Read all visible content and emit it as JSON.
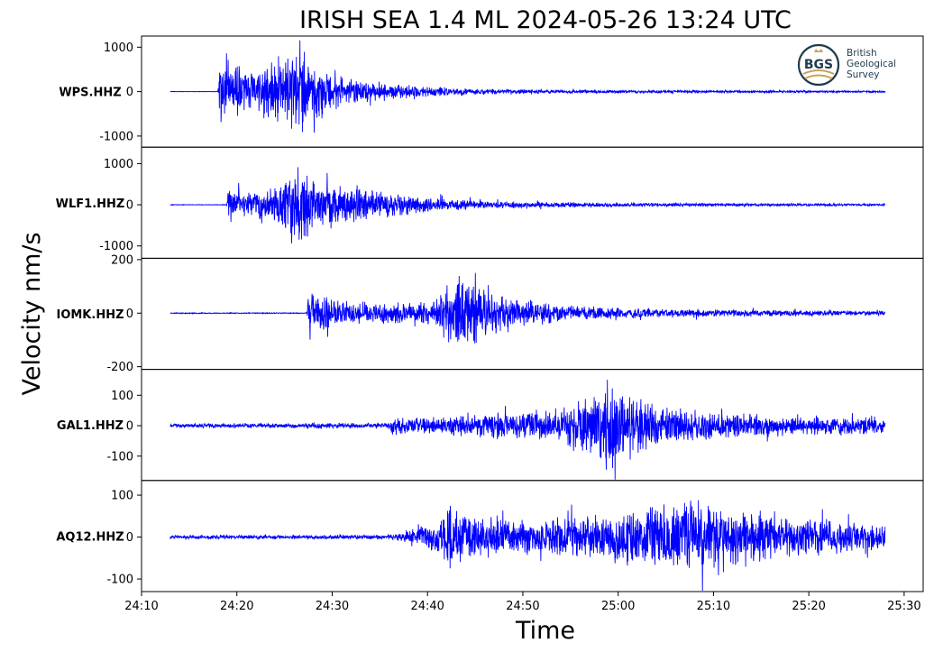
{
  "chart_data": {
    "type": "line",
    "title": "IRISH SEA 1.4 ML   2024-05-26 13:24 UTC",
    "xlabel": "Time",
    "ylabel": "Velocity nm/s",
    "x_ticks": [
      "24:10",
      "24:20",
      "24:30",
      "24:40",
      "24:50",
      "25:00",
      "25:10",
      "25:20",
      "25:30"
    ],
    "x_range_min": [
      24.1667,
      25.5333
    ],
    "trace_range_min": [
      24.2167,
      25.4667
    ],
    "line_color": "#0000ff",
    "logo": {
      "initials": "BGS",
      "lines": [
        "British",
        "Geological",
        "Survey"
      ]
    },
    "panels": [
      {
        "station": "WPS.HHZ",
        "ylim": [
          -1250,
          1250
        ],
        "y_ticks": [
          {
            "v": 1000,
            "label": "1000"
          },
          {
            "v": 0,
            "label": "0"
          },
          {
            "v": -1000,
            "label": "-1000"
          }
        ],
        "noise": 6,
        "envelope": [
          [
            24.2167,
            6
          ],
          [
            24.3,
            6
          ],
          [
            24.305,
            900
          ],
          [
            24.33,
            650
          ],
          [
            24.36,
            500
          ],
          [
            24.4,
            750
          ],
          [
            24.43,
            950
          ],
          [
            24.45,
            950
          ],
          [
            24.5,
            500
          ],
          [
            24.55,
            280
          ],
          [
            24.65,
            140
          ],
          [
            24.75,
            70
          ],
          [
            24.9,
            45
          ],
          [
            25.1,
            35
          ],
          [
            25.4667,
            25
          ]
        ]
      },
      {
        "station": "WLF1.HHZ",
        "ylim": [
          -1300,
          1400
        ],
        "y_ticks": [
          {
            "v": 1000,
            "label": "1000"
          },
          {
            "v": 0,
            "label": "0"
          },
          {
            "v": -1000,
            "label": "-1000"
          }
        ],
        "noise": 8,
        "envelope": [
          [
            24.2167,
            8
          ],
          [
            24.315,
            8
          ],
          [
            24.318,
            450
          ],
          [
            24.35,
            350
          ],
          [
            24.4,
            450
          ],
          [
            24.43,
            900
          ],
          [
            24.45,
            1000
          ],
          [
            24.48,
            650
          ],
          [
            24.55,
            450
          ],
          [
            24.65,
            220
          ],
          [
            24.75,
            120
          ],
          [
            24.9,
            70
          ],
          [
            25.1,
            45
          ],
          [
            25.4667,
            30
          ]
        ]
      },
      {
        "station": "IOMK.HHZ",
        "ylim": [
          -210,
          205
        ],
        "y_ticks": [
          {
            "v": 200,
            "label": "200"
          },
          {
            "v": 0,
            "label": "0"
          },
          {
            "v": -200,
            "label": "-200"
          }
        ],
        "noise": 2,
        "envelope": [
          [
            24.2167,
            2
          ],
          [
            24.455,
            2
          ],
          [
            24.458,
            120
          ],
          [
            24.5,
            55
          ],
          [
            24.6,
            40
          ],
          [
            24.68,
            50
          ],
          [
            24.7,
            110
          ],
          [
            24.72,
            160
          ],
          [
            24.75,
            140
          ],
          [
            24.8,
            70
          ],
          [
            24.9,
            35
          ],
          [
            25.0,
            22
          ],
          [
            25.2,
            15
          ],
          [
            25.4667,
            10
          ]
        ]
      },
      {
        "station": "GAL1.HHZ",
        "ylim": [
          -180,
          185
        ],
        "y_ticks": [
          {
            "v": 100,
            "label": "100"
          },
          {
            "v": 0,
            "label": "0"
          },
          {
            "v": -100,
            "label": "-100"
          }
        ],
        "noise": 8,
        "envelope": [
          [
            24.2167,
            8
          ],
          [
            24.595,
            10
          ],
          [
            24.61,
            40
          ],
          [
            24.65,
            30
          ],
          [
            24.75,
            40
          ],
          [
            24.9,
            60
          ],
          [
            24.95,
            120
          ],
          [
            24.98,
            160
          ],
          [
            25.02,
            110
          ],
          [
            25.1,
            60
          ],
          [
            25.2,
            45
          ],
          [
            25.3,
            35
          ],
          [
            25.4667,
            30
          ]
        ]
      },
      {
        "station": "AQ12.HHZ",
        "ylim": [
          -130,
          135
        ],
        "y_ticks": [
          {
            "v": 100,
            "label": "100"
          },
          {
            "v": 0,
            "label": "0"
          },
          {
            "v": -100,
            "label": "-100"
          }
        ],
        "noise": 5,
        "envelope": [
          [
            24.2167,
            5
          ],
          [
            24.6,
            6
          ],
          [
            24.68,
            40
          ],
          [
            24.71,
            95
          ],
          [
            24.75,
            55
          ],
          [
            24.85,
            45
          ],
          [
            24.95,
            60
          ],
          [
            25.05,
            85
          ],
          [
            25.15,
            100
          ],
          [
            25.2,
            80
          ],
          [
            25.3,
            55
          ],
          [
            25.4667,
            30
          ]
        ]
      }
    ]
  }
}
